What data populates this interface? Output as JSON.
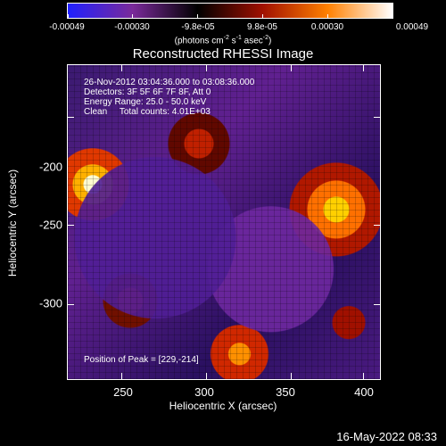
{
  "colorbar": {
    "tick_labels": [
      "-0.00049",
      "-0.00030",
      "-9.8e-05",
      "9.8e-05",
      "0.00030",
      "0.00049"
    ],
    "units_text": "(photons cm",
    "units_exp1": "-2",
    "units_s": " s",
    "units_exp2": "-1",
    "units_asec": " asec",
    "units_exp3": "-2",
    "units_close": ")",
    "colors": [
      "#2020ff",
      "#7a2a9a",
      "#000000",
      "#a01000",
      "#ff8000",
      "#ffffff"
    ]
  },
  "title": "Reconstructed RHESSI Image",
  "info": {
    "line1": "26-Nov-2012 03:04:36.000 to 03:08:36.000",
    "line2": "Detectors: 3F 5F 6F 7F 8F, Att 0",
    "line3": "Energy Range: 25.0 - 50.0 keV",
    "line4": "Clean     Total counts: 4.01E+03",
    "peak": "Position of Peak = [229,-214]"
  },
  "axes": {
    "x_tick_labels": [
      "250",
      "300",
      "350",
      "400"
    ],
    "y_tick_labels": [
      "-200",
      "-250",
      "-300"
    ],
    "xlabel": "Heliocentric X (arcsec)",
    "ylabel": "Heliocentric Y (arcsec)"
  },
  "timestamp": "16-May-2022 08:33"
}
